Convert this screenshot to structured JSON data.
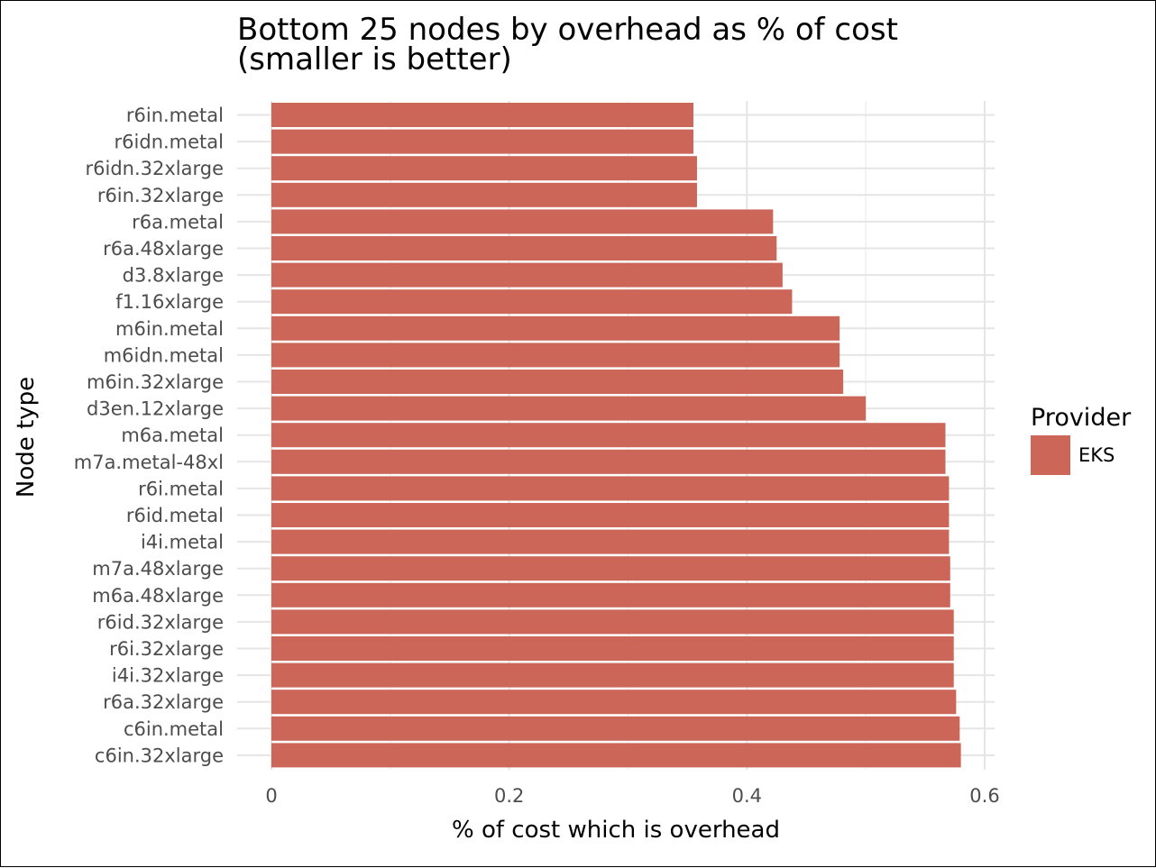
{
  "chart_data": {
    "type": "bar",
    "orientation": "horizontal",
    "title": "Bottom 25 nodes by overhead as % of cost",
    "subtitle": "(smaller is better)",
    "xlabel": "% of cost which is overhead",
    "ylabel": "Node type",
    "xlim": [
      0,
      0.6
    ],
    "x_ticks": [
      "0",
      "0.2",
      "0.4",
      "0.6"
    ],
    "grid": true,
    "legend": {
      "title": "Provider",
      "position": "right",
      "entries": [
        {
          "label": "EKS",
          "color": "#cc6659"
        }
      ]
    },
    "categories": [
      "r6in.metal",
      "r6idn.metal",
      "r6idn.32xlarge",
      "r6in.32xlarge",
      "r6a.metal",
      "r6a.48xlarge",
      "d3.8xlarge",
      "f1.16xlarge",
      "m6in.metal",
      "m6idn.metal",
      "m6in.32xlarge",
      "d3en.12xlarge",
      "m6a.metal",
      "m7a.metal-48xl",
      "r6i.metal",
      "r6id.metal",
      "i4i.metal",
      "m7a.48xlarge",
      "m6a.48xlarge",
      "r6id.32xlarge",
      "r6i.32xlarge",
      "i4i.32xlarge",
      "r6a.32xlarge",
      "c6in.metal",
      "c6in.32xlarge"
    ],
    "series": [
      {
        "name": "EKS",
        "color": "#cc6659",
        "values": [
          0.355,
          0.355,
          0.358,
          0.358,
          0.422,
          0.425,
          0.43,
          0.438,
          0.478,
          0.478,
          0.481,
          0.5,
          0.567,
          0.567,
          0.57,
          0.57,
          0.57,
          0.571,
          0.571,
          0.574,
          0.574,
          0.574,
          0.576,
          0.579,
          0.58
        ]
      }
    ]
  }
}
